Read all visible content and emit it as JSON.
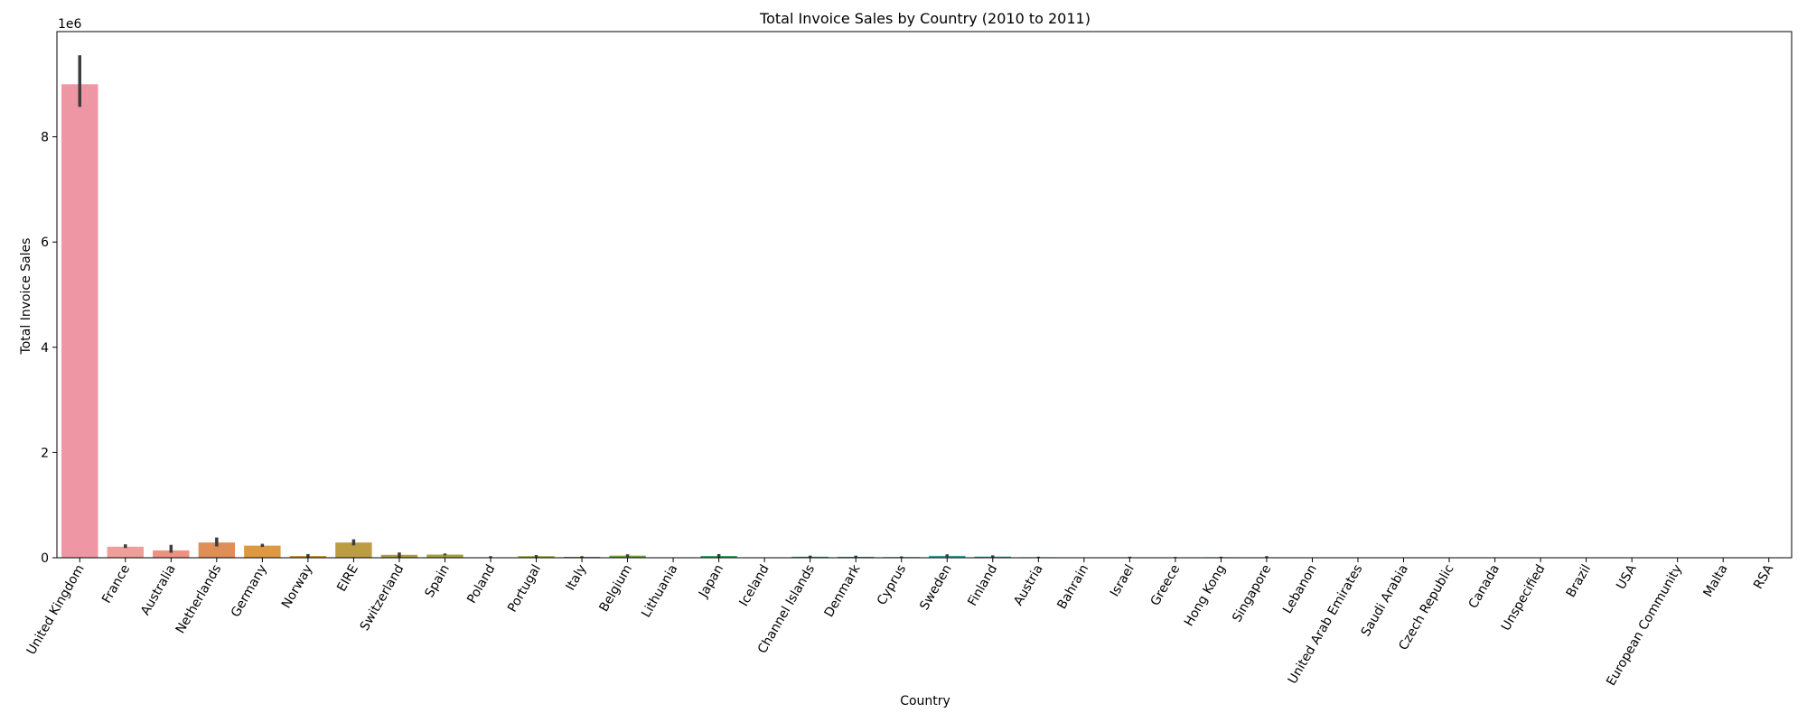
{
  "chart_data": {
    "type": "bar",
    "title": "Total Invoice Sales by Country (2010 to 2011)",
    "xlabel": "Country",
    "ylabel": "Total Invoice Sales",
    "y_offset_label": "1e6",
    "ylim": [
      0,
      10000000
    ],
    "y_ticks": [
      0,
      2000000,
      4000000,
      6000000,
      8000000
    ],
    "y_tick_labels": [
      "0",
      "2",
      "4",
      "6",
      "8"
    ],
    "grid": false,
    "categories": [
      "United Kingdom",
      "France",
      "Australia",
      "Netherlands",
      "Germany",
      "Norway",
      "EIRE",
      "Switzerland",
      "Spain",
      "Poland",
      "Portugal",
      "Italy",
      "Belgium",
      "Lithuania",
      "Japan",
      "Iceland",
      "Channel Islands",
      "Denmark",
      "Cyprus",
      "Sweden",
      "Finland",
      "Austria",
      "Bahrain",
      "Israel",
      "Greece",
      "Hong Kong",
      "Singapore",
      "Lebanon",
      "United Arab Emirates",
      "Saudi Arabia",
      "Czech Republic",
      "Canada",
      "Unspecified",
      "Brazil",
      "USA",
      "European Community",
      "Malta",
      "RSA"
    ],
    "values": [
      9000000,
      210000,
      140000,
      290000,
      230000,
      35000,
      290000,
      55000,
      60000,
      7000,
      30000,
      17000,
      40000,
      1700,
      35000,
      4300,
      20000,
      18000,
      13000,
      37000,
      22000,
      10000,
      550,
      8000,
      4700,
      10000,
      9000,
      1700,
      1900,
      130,
      700,
      3700,
      2600,
      1100,
      1700,
      1300,
      2500,
      1000
    ],
    "error_low": [
      8570000,
      185000,
      95000,
      215000,
      205000,
      5000,
      235000,
      10000,
      45000,
      0,
      10000,
      5000,
      15000,
      1000,
      10000,
      2000,
      5000,
      3000,
      5000,
      15000,
      5000,
      3000,
      0,
      0,
      0,
      1000,
      0,
      500,
      500,
      0,
      0,
      1000,
      500,
      200,
      500,
      200,
      1000,
      200
    ],
    "error_high": [
      9550000,
      255000,
      245000,
      385000,
      265000,
      70000,
      350000,
      100000,
      80000,
      30000,
      50000,
      30000,
      65000,
      2500,
      70000,
      6000,
      40000,
      40000,
      25000,
      65000,
      45000,
      20000,
      1000,
      20000,
      15000,
      20000,
      30000,
      3000,
      3500,
      300,
      1500,
      7000,
      5000,
      2000,
      3000,
      2500,
      4000,
      2000
    ],
    "colors": [
      "#ef96a4",
      "#ef9f99",
      "#ed9282",
      "#e08e58",
      "#dd9941",
      "#c99f3d",
      "#bc9d42",
      "#ae9e39",
      "#a4a23a",
      "#98a23a",
      "#8ea83a",
      "#80a83b",
      "#6aa83c",
      "#55aa44",
      "#3ea862",
      "#3aa879",
      "#3aa885",
      "#3ba88f",
      "#3ca898",
      "#3ca6a0",
      "#3da5a9",
      "#3ea6b2",
      "#3fa6bd",
      "#42a5c7",
      "#49a4d3",
      "#56a2dd",
      "#68a0e3",
      "#809ce6",
      "#9596e6",
      "#a58ee4",
      "#b488e0",
      "#c47fdb",
      "#d07ad3",
      "#d87ccb",
      "#de80c0",
      "#e385b5",
      "#e88aab",
      "#ec8fa2"
    ]
  }
}
